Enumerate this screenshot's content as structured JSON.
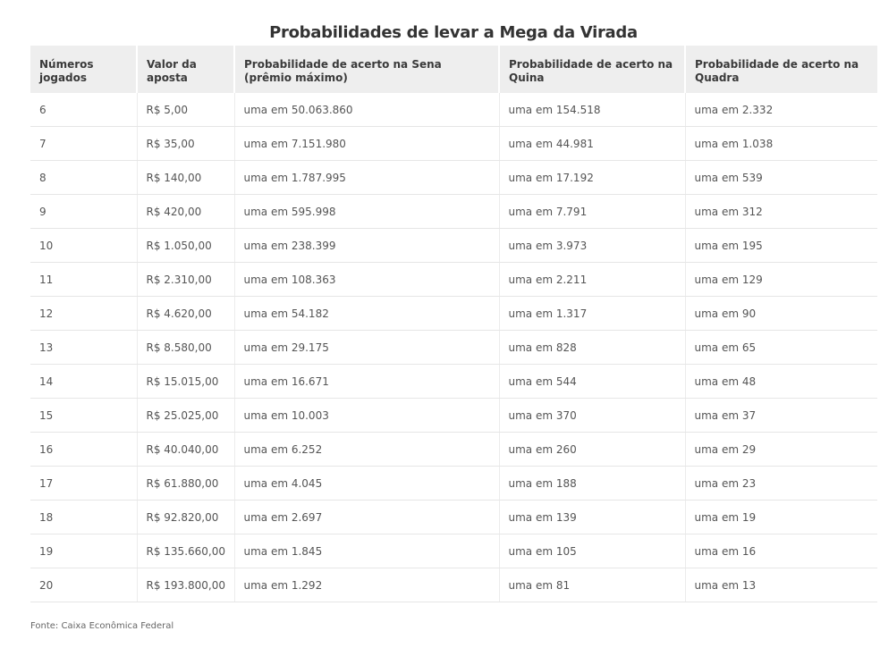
{
  "title": "Probabilidades de levar a Mega da Virada",
  "source": "Fonte: Caixa Econômica Federal",
  "chart_data": {
    "type": "table",
    "title": "Probabilidades de levar a Mega da Virada",
    "columns": [
      "Números jogados",
      "Valor da aposta",
      "Probabilidade de acerto na Sena (prêmio máximo)",
      "Probabilidade de acerto na Quina",
      "Probabilidade de acerto na Quadra"
    ],
    "rows": [
      [
        "6",
        "R$ 5,00",
        "uma em 50.063.860",
        "uma em 154.518",
        "uma em 2.332"
      ],
      [
        "7",
        "R$ 35,00",
        "uma em 7.151.980",
        "uma em 44.981",
        "uma em 1.038"
      ],
      [
        "8",
        "R$ 140,00",
        "uma em 1.787.995",
        "uma em 17.192",
        "uma em 539"
      ],
      [
        "9",
        "R$ 420,00",
        "uma em 595.998",
        "uma em 7.791",
        "uma em 312"
      ],
      [
        "10",
        "R$ 1.050,00",
        "uma em 238.399",
        "uma em 3.973",
        "uma em 195"
      ],
      [
        "11",
        "R$ 2.310,00",
        "uma em 108.363",
        "uma em 2.211",
        "uma em 129"
      ],
      [
        "12",
        "R$ 4.620,00",
        "uma em 54.182",
        "uma em 1.317",
        "uma em 90"
      ],
      [
        "13",
        "R$ 8.580,00",
        "uma em 29.175",
        "uma em 828",
        "uma em 65"
      ],
      [
        "14",
        "R$ 15.015,00",
        "uma em 16.671",
        "uma em 544",
        "uma em 48"
      ],
      [
        "15",
        "R$ 25.025,00",
        "uma em 10.003",
        "uma em 370",
        "uma em 37"
      ],
      [
        "16",
        "R$ 40.040,00",
        "uma em 6.252",
        "uma em 260",
        "uma em 29"
      ],
      [
        "17",
        "R$ 61.880,00",
        "uma em 4.045",
        "uma em 188",
        "uma em 23"
      ],
      [
        "18",
        "R$ 92.820,00",
        "uma em 2.697",
        "uma em 139",
        "uma em 19"
      ],
      [
        "19",
        "R$ 135.660,00",
        "uma em 1.845",
        "uma em 105",
        "uma em 16"
      ],
      [
        "20",
        "R$ 193.800,00",
        "uma em 1.292",
        "uma em 81",
        "uma em 13"
      ]
    ]
  }
}
